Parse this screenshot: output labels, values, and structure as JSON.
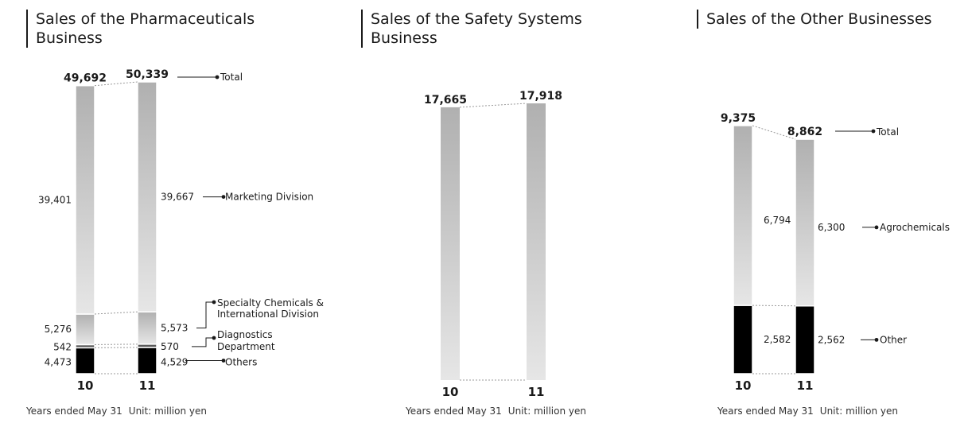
{
  "chart_data": [
    {
      "type": "bar",
      "title": "Sales of the Pharmaceuticals Business",
      "categories": [
        "10",
        "11"
      ],
      "totals": [
        49692,
        50339
      ],
      "total_labels": [
        "49,692",
        "50,339"
      ],
      "total_legend": "Total",
      "series": [
        {
          "name": "Others",
          "values": [
            4473,
            4529
          ],
          "labels": [
            "4,473",
            "4,529"
          ]
        },
        {
          "name": "Diagnostics Department",
          "values": [
            542,
            570
          ],
          "labels": [
            "542",
            "570"
          ]
        },
        {
          "name": "Specialty Chemicals & International Division",
          "values": [
            5276,
            5573
          ],
          "labels": [
            "5,276",
            "5,573"
          ]
        },
        {
          "name": "Marketing Division",
          "values": [
            39401,
            39667
          ],
          "labels": [
            "39,401",
            "39,667"
          ]
        }
      ],
      "footnote_years": "Years ended May 31",
      "footnote_unit": "Unit: million yen"
    },
    {
      "type": "bar",
      "title": "Sales of the Safety Systems Business",
      "categories": [
        "10",
        "11"
      ],
      "totals": [
        17665,
        17918
      ],
      "total_labels": [
        "17,665",
        "17,918"
      ],
      "footnote_years": "Years ended May 31",
      "footnote_unit": "Unit: million yen"
    },
    {
      "type": "bar",
      "title": "Sales of the Other Businesses",
      "categories": [
        "10",
        "11"
      ],
      "totals": [
        9375,
        8862
      ],
      "total_labels": [
        "9,375",
        "8,862"
      ],
      "total_legend": "Total",
      "series": [
        {
          "name": "Other",
          "values": [
            2582,
            2562
          ],
          "labels": [
            "2,582",
            "2,562"
          ]
        },
        {
          "name": "Agrochemicals",
          "values": [
            6794,
            6300
          ],
          "labels": [
            "6,794",
            "6,300"
          ]
        }
      ],
      "footnote_years": "Years ended May 31",
      "footnote_unit": "Unit: million yen"
    }
  ],
  "colors": {
    "black": "#000000",
    "gradient_top": "#b0b0b0",
    "gradient_bottom": "#e6e6e6"
  }
}
